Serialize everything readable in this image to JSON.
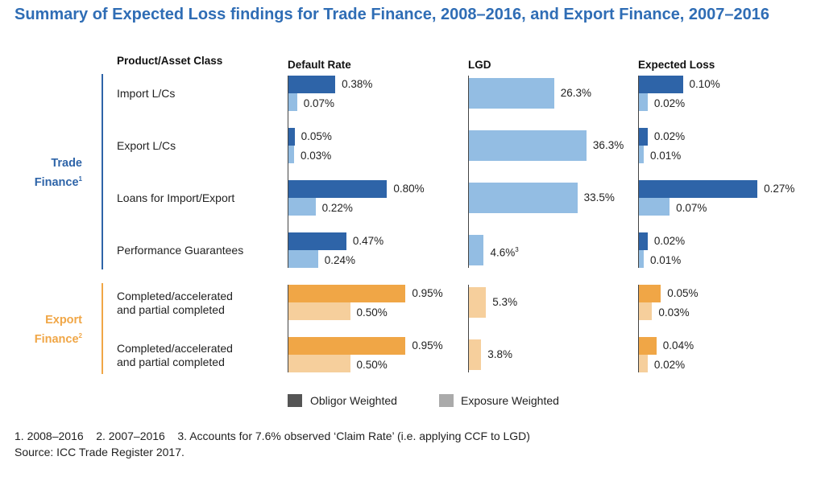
{
  "title": "Summary of Expected Loss findings for Trade Finance, 2008–2016, and Export Finance, 2007–2016",
  "headers": {
    "product": "Product/Asset Class",
    "default_rate": "Default Rate",
    "lgd": "LGD",
    "expected_loss": "Expected Loss"
  },
  "groups": [
    {
      "name": "Trade Finance",
      "sup": "1",
      "color": "#2e64a8",
      "light": "#93bde3"
    },
    {
      "name": "Export Finance",
      "sup": "2",
      "color": "#f0a646",
      "light": "#f6cf9c"
    }
  ],
  "colors": {
    "trade_obligor": "#2e64a8",
    "trade_exposure": "#93bde3",
    "export_obligor": "#f0a646",
    "export_exposure": "#f6cf9c",
    "title": "#2f6db5",
    "legend_obligor": "#555555",
    "legend_exposure": "#aaaaaa"
  },
  "legend": {
    "obligor": "Obligor Weighted",
    "exposure": "Exposure Weighted"
  },
  "footnotes": {
    "line1": "1. 2008–2016    2. 2007–2016    3. Accounts for 7.6% observed ‘Claim Rate’ (i.e. applying CCF to LGD)",
    "line2": "Source: ICC Trade Register 2017."
  },
  "chart_data": {
    "type": "bar",
    "orientation": "horizontal",
    "categories": [
      "Import L/Cs",
      "Export L/Cs",
      "Loans for Import/Export",
      "Performance Guarantees",
      "Completed/accelerated and partial completed",
      "Completed/accelerated and partial completed"
    ],
    "category_lines": [
      [
        "Import L/Cs"
      ],
      [
        "Export L/Cs"
      ],
      [
        "Loans for Import/Export"
      ],
      [
        "Performance Guarantees"
      ],
      [
        "Completed/accelerated",
        "and partial completed"
      ],
      [
        "Completed/accelerated",
        "and partial completed"
      ]
    ],
    "category_group": [
      0,
      0,
      0,
      0,
      1,
      1
    ],
    "default_rate": {
      "obligor": [
        0.38,
        0.05,
        0.8,
        0.47,
        0.95,
        0.95
      ],
      "exposure": [
        0.07,
        0.03,
        0.22,
        0.24,
        0.5,
        0.5
      ],
      "obligor_labels": [
        "0.38%",
        "0.05%",
        "0.80%",
        "0.47%",
        "0.95%",
        "0.95%"
      ],
      "exposure_labels": [
        "0.07%",
        "0.03%",
        "0.22%",
        "0.24%",
        "0.50%",
        "0.50%"
      ]
    },
    "lgd": {
      "values": [
        26.3,
        36.3,
        33.5,
        4.6,
        5.3,
        3.8
      ],
      "labels": [
        "26.3%",
        "36.3%",
        "33.5%",
        "4.6%",
        "5.3%",
        "3.8%"
      ],
      "label_sup": [
        "",
        "",
        "",
        "3",
        "",
        ""
      ]
    },
    "expected_loss": {
      "obligor": [
        0.1,
        0.02,
        0.27,
        0.02,
        0.05,
        0.04
      ],
      "exposure": [
        0.02,
        0.01,
        0.07,
        0.01,
        0.03,
        0.02
      ],
      "obligor_labels": [
        "0.10%",
        "0.02%",
        "0.27%",
        "0.02%",
        "0.05%",
        "0.04%"
      ],
      "exposure_labels": [
        "0.02%",
        "0.01%",
        "0.07%",
        "0.01%",
        "0.03%",
        "0.02%"
      ]
    }
  }
}
